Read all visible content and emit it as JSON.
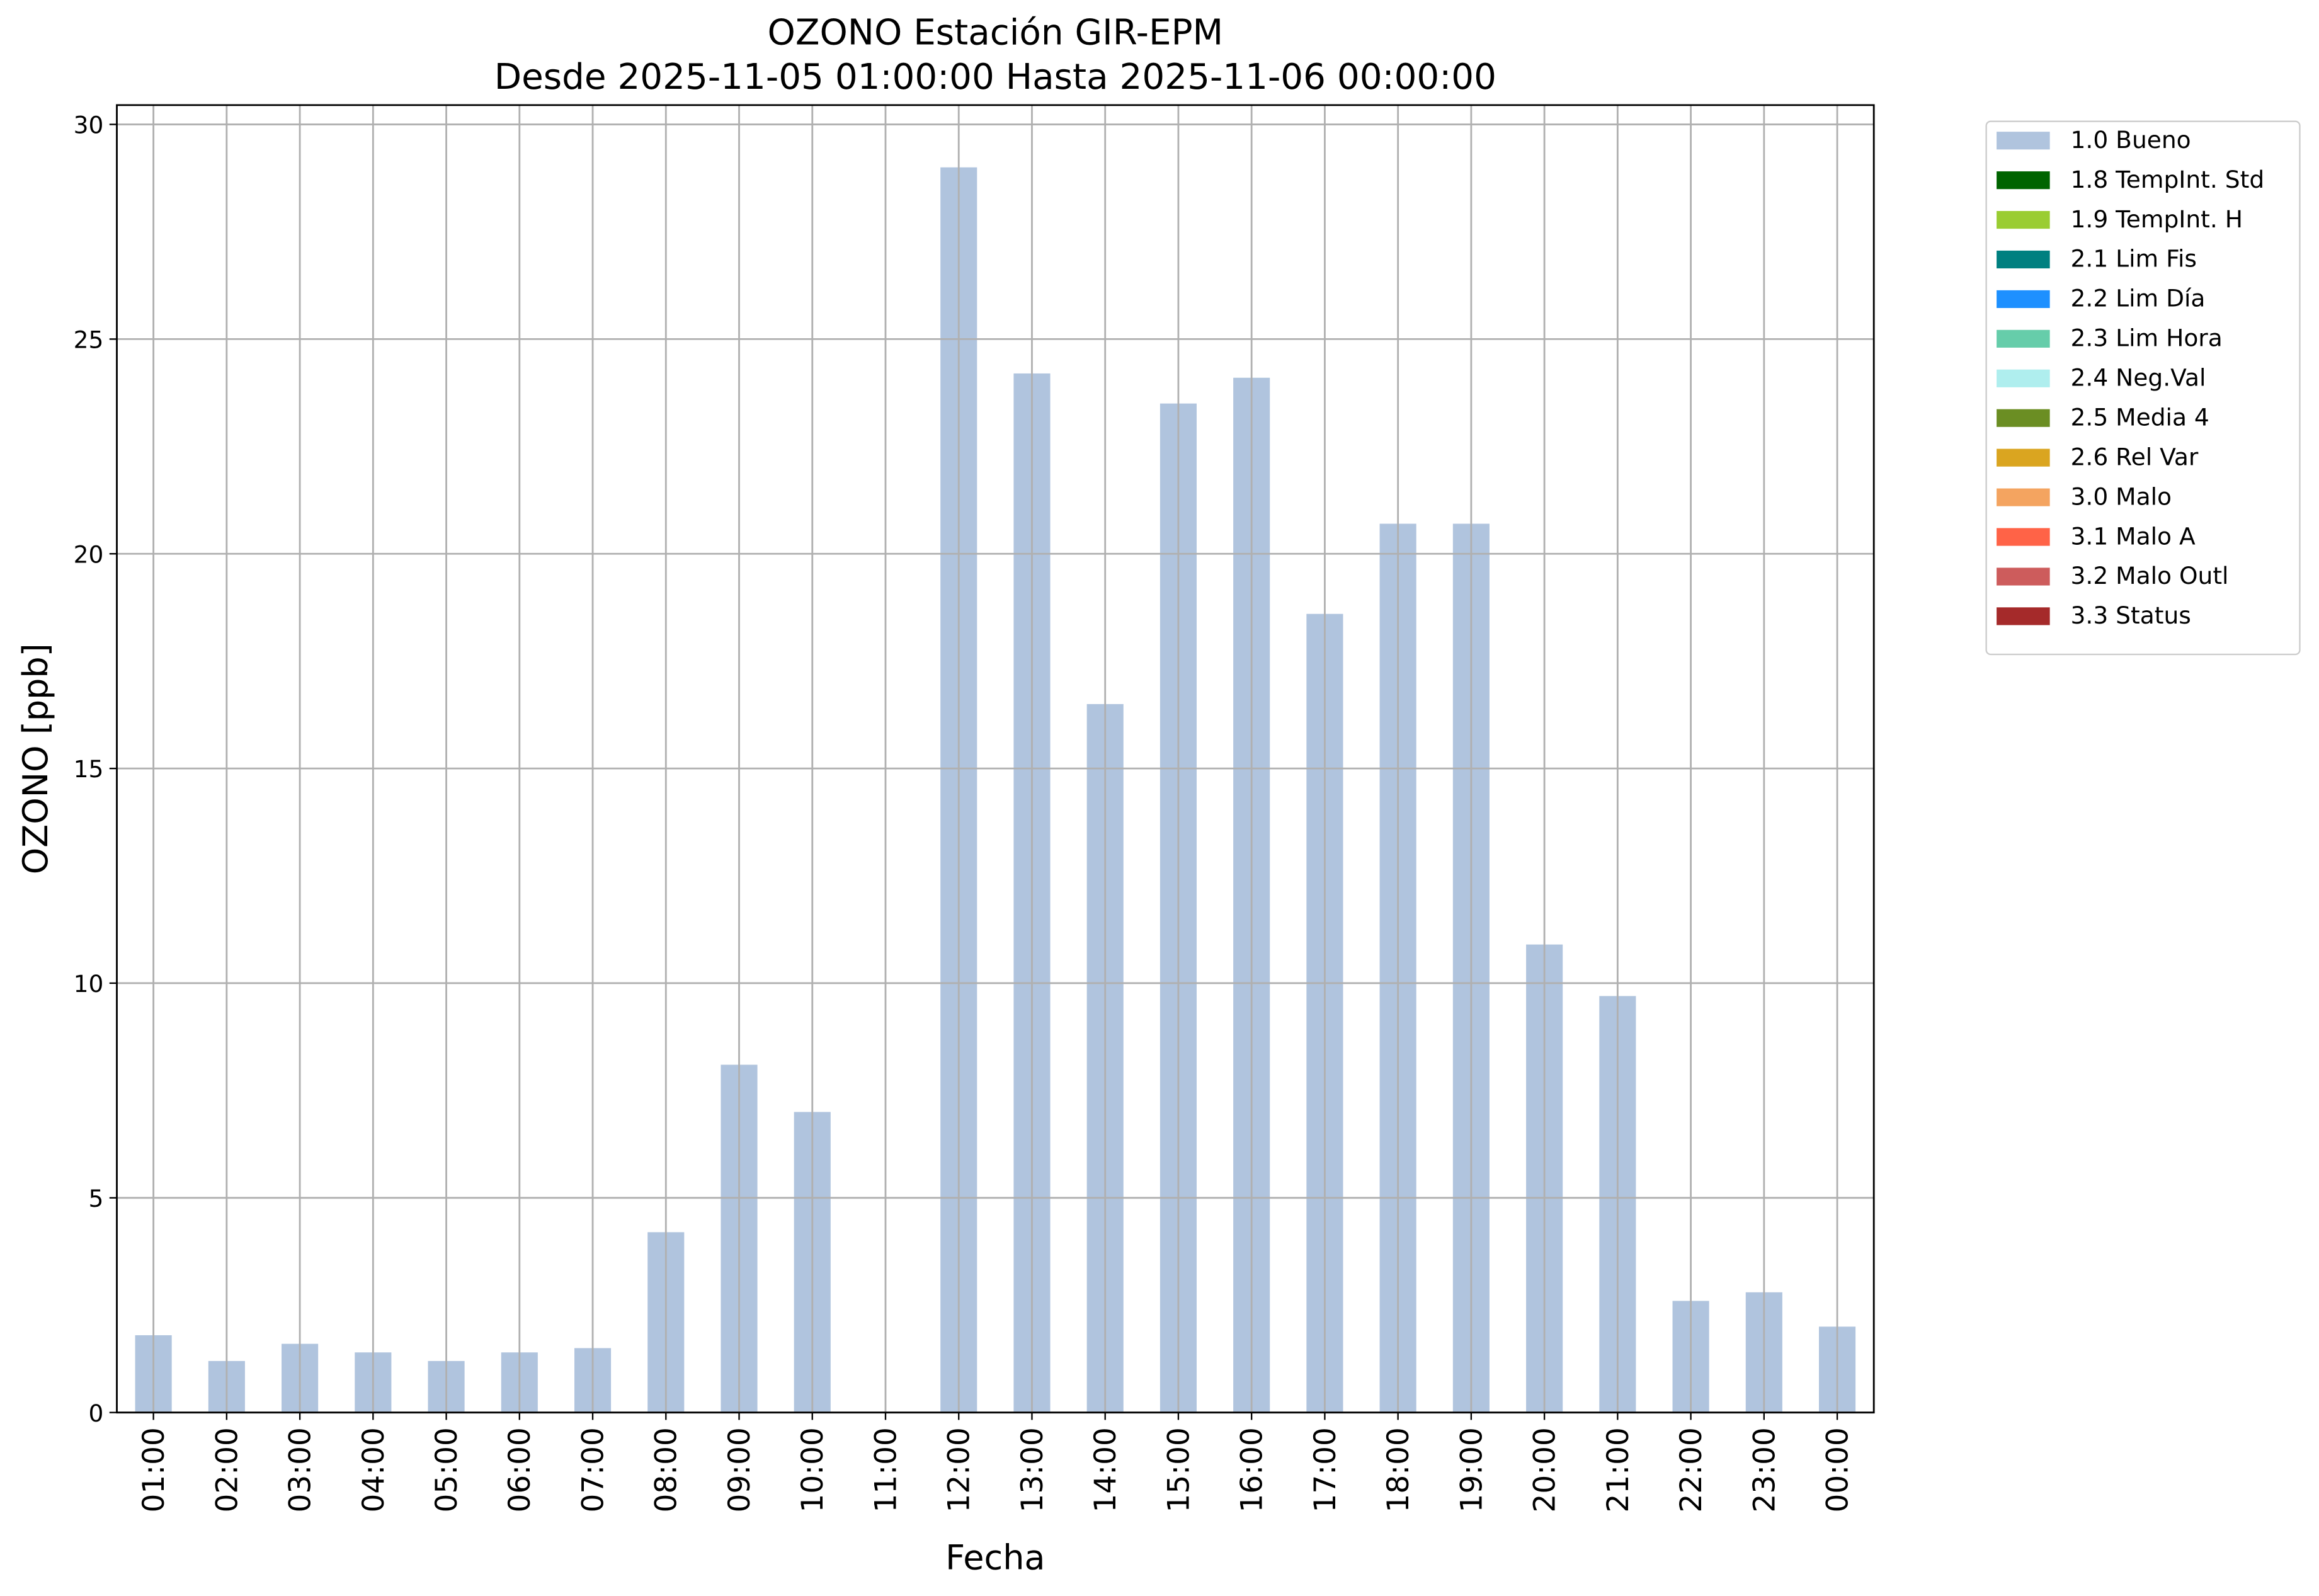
{
  "chart_data": {
    "type": "bar",
    "title": "OZONO Estación GIR-EPM",
    "subtitle": "Desde 2025-11-05 01:00:00 Hasta 2025-11-06 00:00:00",
    "x_label": "Fecha",
    "y_label": "OZONO [ppb]",
    "categories": [
      "01:00",
      "02:00",
      "03:00",
      "04:00",
      "05:00",
      "06:00",
      "07:00",
      "08:00",
      "09:00",
      "10:00",
      "11:00",
      "12:00",
      "13:00",
      "14:00",
      "15:00",
      "16:00",
      "17:00",
      "18:00",
      "19:00",
      "20:00",
      "21:00",
      "22:00",
      "23:00",
      "00:00"
    ],
    "series": [
      {
        "name": "1.0 Bueno",
        "color": "#b0c4de",
        "values": [
          1.8,
          1.2,
          1.6,
          1.4,
          1.2,
          1.4,
          1.5,
          4.2,
          8.1,
          7.0,
          null,
          29.0,
          24.2,
          16.5,
          23.5,
          24.1,
          18.6,
          20.7,
          20.7,
          10.9,
          9.7,
          2.6,
          2.8,
          2.0
        ]
      },
      {
        "name": "1.8 TempInt. Std",
        "color": "#006400"
      },
      {
        "name": "1.9 TempInt. H",
        "color": "#9acd32"
      },
      {
        "name": "2.1 Lim Fis",
        "color": "#008080"
      },
      {
        "name": "2.2 Lim Día",
        "color": "#1e90ff"
      },
      {
        "name": "2.3 Lim Hora",
        "color": "#66cdaa"
      },
      {
        "name": "2.4 Neg.Val",
        "color": "#afeeee"
      },
      {
        "name": "2.5 Media 4",
        "color": "#6b8e23"
      },
      {
        "name": "2.6 Rel Var",
        "color": "#daa520"
      },
      {
        "name": "3.0 Malo",
        "color": "#f4a460"
      },
      {
        "name": "3.1 Malo A",
        "color": "#ff6347"
      },
      {
        "name": "3.2 Malo Outl",
        "color": "#cd5c5c"
      },
      {
        "name": "3.3 Status",
        "color": "#a52a2a"
      }
    ],
    "ylim": [
      0,
      30.45
    ],
    "yticks": [
      0,
      5,
      10,
      15,
      20,
      25,
      30
    ],
    "grid": true,
    "legend": "outside-upper-right"
  }
}
